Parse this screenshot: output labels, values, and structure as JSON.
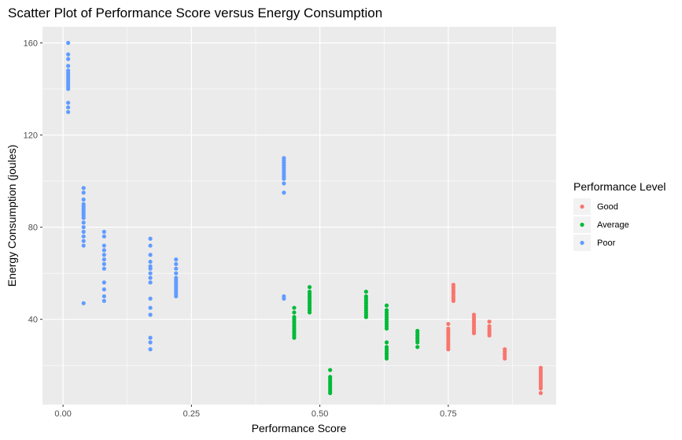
{
  "chart_data": {
    "type": "scatter",
    "title": "Scatter Plot of Performance Score versus Energy Consumption",
    "xlabel": "Performance Score",
    "ylabel": "Energy Consumption (joules)",
    "xlim": [
      -0.04,
      0.96
    ],
    "ylim": [
      3,
      167
    ],
    "x_ticks": [
      0.0,
      0.25,
      0.5,
      0.75
    ],
    "x_tick_labels": [
      "0.00",
      "0.25",
      "0.50",
      "0.75"
    ],
    "y_ticks": [
      40,
      80,
      120,
      160
    ],
    "y_tick_labels": [
      "40",
      "80",
      "120",
      "160"
    ],
    "grid": true,
    "legend": {
      "title": "Performance Level",
      "position": "right",
      "entries": [
        {
          "label": "Good",
          "color": "#F8766D"
        },
        {
          "label": "Average",
          "color": "#00BA38"
        },
        {
          "label": "Poor",
          "color": "#619CFF"
        }
      ]
    },
    "series": [
      {
        "name": "Good",
        "color": "#F8766D",
        "points": [
          [
            0.75,
            27
          ],
          [
            0.75,
            28
          ],
          [
            0.75,
            29
          ],
          [
            0.75,
            30
          ],
          [
            0.75,
            31
          ],
          [
            0.75,
            32
          ],
          [
            0.75,
            33
          ],
          [
            0.75,
            34
          ],
          [
            0.75,
            35
          ],
          [
            0.75,
            36
          ],
          [
            0.75,
            38
          ],
          [
            0.76,
            48
          ],
          [
            0.76,
            49
          ],
          [
            0.76,
            50
          ],
          [
            0.76,
            51
          ],
          [
            0.76,
            52
          ],
          [
            0.76,
            53
          ],
          [
            0.76,
            54
          ],
          [
            0.76,
            55
          ],
          [
            0.8,
            34
          ],
          [
            0.8,
            35
          ],
          [
            0.8,
            36
          ],
          [
            0.8,
            37
          ],
          [
            0.8,
            38
          ],
          [
            0.8,
            39
          ],
          [
            0.8,
            40
          ],
          [
            0.8,
            41
          ],
          [
            0.8,
            42
          ],
          [
            0.83,
            33
          ],
          [
            0.83,
            34
          ],
          [
            0.83,
            35
          ],
          [
            0.83,
            36
          ],
          [
            0.83,
            37
          ],
          [
            0.83,
            39
          ],
          [
            0.86,
            23
          ],
          [
            0.86,
            24
          ],
          [
            0.86,
            25
          ],
          [
            0.86,
            26
          ],
          [
            0.86,
            27
          ],
          [
            0.93,
            8
          ],
          [
            0.93,
            10
          ],
          [
            0.93,
            11
          ],
          [
            0.93,
            12
          ],
          [
            0.93,
            13
          ],
          [
            0.93,
            14
          ],
          [
            0.93,
            15
          ],
          [
            0.93,
            16
          ],
          [
            0.93,
            17
          ],
          [
            0.93,
            18
          ],
          [
            0.93,
            19
          ]
        ]
      },
      {
        "name": "Average",
        "color": "#00BA38",
        "points": [
          [
            0.45,
            32
          ],
          [
            0.45,
            33
          ],
          [
            0.45,
            34
          ],
          [
            0.45,
            35
          ],
          [
            0.45,
            36
          ],
          [
            0.45,
            37
          ],
          [
            0.45,
            38
          ],
          [
            0.45,
            39
          ],
          [
            0.45,
            40
          ],
          [
            0.45,
            41
          ],
          [
            0.45,
            43
          ],
          [
            0.45,
            45
          ],
          [
            0.48,
            43
          ],
          [
            0.48,
            44
          ],
          [
            0.48,
            45
          ],
          [
            0.48,
            46
          ],
          [
            0.48,
            47
          ],
          [
            0.48,
            48
          ],
          [
            0.48,
            49
          ],
          [
            0.48,
            50
          ],
          [
            0.48,
            51
          ],
          [
            0.48,
            52
          ],
          [
            0.48,
            54
          ],
          [
            0.52,
            8
          ],
          [
            0.52,
            9
          ],
          [
            0.52,
            10
          ],
          [
            0.52,
            11
          ],
          [
            0.52,
            12
          ],
          [
            0.52,
            13
          ],
          [
            0.52,
            14
          ],
          [
            0.52,
            15
          ],
          [
            0.52,
            18
          ],
          [
            0.59,
            41
          ],
          [
            0.59,
            42
          ],
          [
            0.59,
            43
          ],
          [
            0.59,
            44
          ],
          [
            0.59,
            45
          ],
          [
            0.59,
            46
          ],
          [
            0.59,
            47
          ],
          [
            0.59,
            48
          ],
          [
            0.59,
            49
          ],
          [
            0.59,
            50
          ],
          [
            0.59,
            52
          ],
          [
            0.63,
            23
          ],
          [
            0.63,
            24
          ],
          [
            0.63,
            25
          ],
          [
            0.63,
            26
          ],
          [
            0.63,
            27
          ],
          [
            0.63,
            28
          ],
          [
            0.63,
            30
          ],
          [
            0.63,
            36
          ],
          [
            0.63,
            37
          ],
          [
            0.63,
            38
          ],
          [
            0.63,
            39
          ],
          [
            0.63,
            40
          ],
          [
            0.63,
            41
          ],
          [
            0.63,
            42
          ],
          [
            0.63,
            43
          ],
          [
            0.63,
            44
          ],
          [
            0.63,
            46
          ],
          [
            0.69,
            28
          ],
          [
            0.69,
            30
          ],
          [
            0.69,
            31
          ],
          [
            0.69,
            32
          ],
          [
            0.69,
            33
          ],
          [
            0.69,
            34
          ],
          [
            0.69,
            35
          ]
        ]
      },
      {
        "name": "Poor",
        "color": "#619CFF",
        "points": [
          [
            0.01,
            130
          ],
          [
            0.01,
            132
          ],
          [
            0.01,
            134
          ],
          [
            0.01,
            140
          ],
          [
            0.01,
            141
          ],
          [
            0.01,
            142
          ],
          [
            0.01,
            143
          ],
          [
            0.01,
            144
          ],
          [
            0.01,
            145
          ],
          [
            0.01,
            146
          ],
          [
            0.01,
            147
          ],
          [
            0.01,
            148
          ],
          [
            0.01,
            150
          ],
          [
            0.01,
            153
          ],
          [
            0.01,
            155
          ],
          [
            0.01,
            160
          ],
          [
            0.04,
            47
          ],
          [
            0.04,
            72
          ],
          [
            0.04,
            74
          ],
          [
            0.04,
            76
          ],
          [
            0.04,
            78
          ],
          [
            0.04,
            80
          ],
          [
            0.04,
            82
          ],
          [
            0.04,
            84
          ],
          [
            0.04,
            85
          ],
          [
            0.04,
            86
          ],
          [
            0.04,
            87
          ],
          [
            0.04,
            88
          ],
          [
            0.04,
            89
          ],
          [
            0.04,
            90
          ],
          [
            0.04,
            92
          ],
          [
            0.04,
            95
          ],
          [
            0.04,
            97
          ],
          [
            0.08,
            48
          ],
          [
            0.08,
            50
          ],
          [
            0.08,
            53
          ],
          [
            0.08,
            56
          ],
          [
            0.08,
            62
          ],
          [
            0.08,
            64
          ],
          [
            0.08,
            66
          ],
          [
            0.08,
            68
          ],
          [
            0.08,
            70
          ],
          [
            0.08,
            72
          ],
          [
            0.08,
            76
          ],
          [
            0.08,
            78
          ],
          [
            0.17,
            27
          ],
          [
            0.17,
            30
          ],
          [
            0.17,
            32
          ],
          [
            0.17,
            42
          ],
          [
            0.17,
            45
          ],
          [
            0.17,
            49
          ],
          [
            0.17,
            56
          ],
          [
            0.17,
            58
          ],
          [
            0.17,
            60
          ],
          [
            0.17,
            62
          ],
          [
            0.17,
            63
          ],
          [
            0.17,
            65
          ],
          [
            0.17,
            68
          ],
          [
            0.17,
            72
          ],
          [
            0.17,
            75
          ],
          [
            0.22,
            50
          ],
          [
            0.22,
            51
          ],
          [
            0.22,
            52
          ],
          [
            0.22,
            53
          ],
          [
            0.22,
            54
          ],
          [
            0.22,
            55
          ],
          [
            0.22,
            56
          ],
          [
            0.22,
            57
          ],
          [
            0.22,
            58
          ],
          [
            0.22,
            60
          ],
          [
            0.22,
            62
          ],
          [
            0.22,
            64
          ],
          [
            0.22,
            66
          ],
          [
            0.43,
            49
          ],
          [
            0.43,
            50
          ],
          [
            0.43,
            95
          ],
          [
            0.43,
            99
          ],
          [
            0.43,
            101
          ],
          [
            0.43,
            102
          ],
          [
            0.43,
            103
          ],
          [
            0.43,
            104
          ],
          [
            0.43,
            105
          ],
          [
            0.43,
            106
          ],
          [
            0.43,
            107
          ],
          [
            0.43,
            108
          ],
          [
            0.43,
            109
          ],
          [
            0.43,
            110
          ]
        ]
      }
    ]
  }
}
